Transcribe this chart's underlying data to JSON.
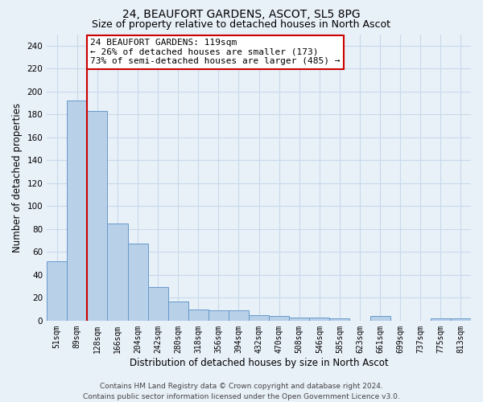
{
  "title1": "24, BEAUFORT GARDENS, ASCOT, SL5 8PG",
  "title2": "Size of property relative to detached houses in North Ascot",
  "xlabel": "Distribution of detached houses by size in North Ascot",
  "ylabel": "Number of detached properties",
  "footer1": "Contains HM Land Registry data © Crown copyright and database right 2024.",
  "footer2": "Contains public sector information licensed under the Open Government Licence v3.0.",
  "categories": [
    "51sqm",
    "89sqm",
    "128sqm",
    "166sqm",
    "204sqm",
    "242sqm",
    "280sqm",
    "318sqm",
    "356sqm",
    "394sqm",
    "432sqm",
    "470sqm",
    "508sqm",
    "546sqm",
    "585sqm",
    "623sqm",
    "661sqm",
    "699sqm",
    "737sqm",
    "775sqm",
    "813sqm"
  ],
  "values": [
    52,
    192,
    183,
    85,
    67,
    29,
    17,
    10,
    9,
    9,
    5,
    4,
    3,
    3,
    2,
    0,
    4,
    0,
    0,
    2,
    2
  ],
  "bar_color": "#b8d0e8",
  "bar_edge_color": "#6699cc",
  "grid_color": "#c8daea",
  "background_color": "#e8f0f8",
  "red_line_color": "#cc0000",
  "annotation_line1": "24 BEAUFORT GARDENS: 119sqm",
  "annotation_line2": "← 26% of detached houses are smaller (173)",
  "annotation_line3": "73% of semi-detached houses are larger (485) →",
  "annotation_box_color": "#ffffff",
  "annotation_box_edge": "#cc0000",
  "ylim": [
    0,
    250
  ],
  "yticks": [
    0,
    20,
    40,
    60,
    80,
    100,
    120,
    140,
    160,
    180,
    200,
    220,
    240
  ],
  "title1_fontsize": 10,
  "title2_fontsize": 9,
  "xlabel_fontsize": 8.5,
  "ylabel_fontsize": 8.5,
  "annotation_fontsize": 8,
  "footer_fontsize": 6.5,
  "tick_fontsize": 7.5,
  "xtick_fontsize": 7
}
